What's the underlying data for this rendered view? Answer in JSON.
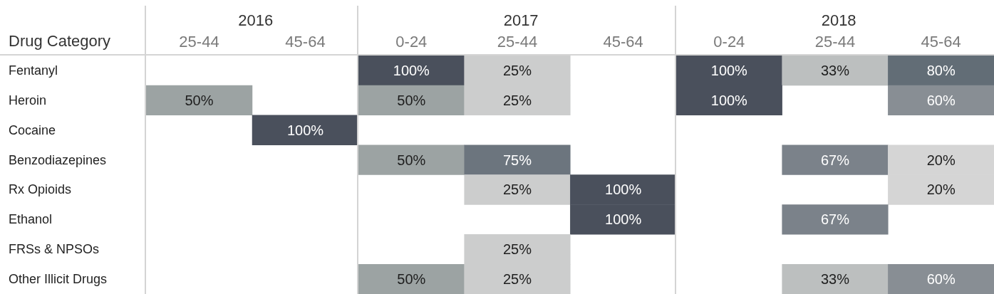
{
  "chart_data": [
    {
      "type": "heatmap",
      "title": "2016",
      "ylabel": "Drug Category",
      "categories": [
        "25-44",
        "45-64"
      ],
      "y_categories": [
        "Fentanyl",
        "Heroin",
        "Cocaine",
        "Benzodiazepines",
        "Rx Opioids",
        "Ethanol",
        "FRSs & NPSOs",
        "Other Illicit Drugs"
      ],
      "cells": [
        [
          null,
          null
        ],
        [
          50,
          null
        ],
        [
          null,
          100
        ],
        [
          null,
          null
        ],
        [
          null,
          null
        ],
        [
          null,
          null
        ],
        [
          null,
          null
        ],
        [
          null,
          null
        ]
      ],
      "cell_labels": [
        [
          null,
          null
        ],
        [
          "50%",
          null
        ],
        [
          null,
          "100%"
        ],
        [
          null,
          null
        ],
        [
          null,
          null
        ],
        [
          null,
          null
        ],
        [
          null,
          null
        ],
        [
          null,
          null
        ]
      ]
    },
    {
      "type": "heatmap",
      "title": "2017",
      "categories": [
        "0-24",
        "25-44",
        "45-64"
      ],
      "y_categories": [
        "Fentanyl",
        "Heroin",
        "Cocaine",
        "Benzodiazepines",
        "Rx Opioids",
        "Ethanol",
        "FRSs & NPSOs",
        "Other Illicit Drugs"
      ],
      "tick_labels": "x",
      "cells": [
        [
          100,
          25,
          null
        ],
        [
          50,
          25,
          null
        ],
        [
          null,
          null,
          null
        ],
        [
          50,
          75,
          null
        ],
        [
          null,
          25,
          100
        ],
        [
          null,
          null,
          100
        ],
        [
          null,
          25,
          null
        ],
        [
          50,
          25,
          null
        ]
      ],
      "cell_labels": [
        [
          "100%",
          "25%",
          null
        ],
        [
          "50%",
          "25%",
          null
        ],
        [
          null,
          null,
          null
        ],
        [
          "50%",
          "75%",
          null
        ],
        [
          null,
          "25%",
          "100%"
        ],
        [
          null,
          null,
          "100%"
        ],
        [
          null,
          "25%",
          null
        ],
        [
          "50%",
          "25%",
          null
        ]
      ]
    },
    {
      "type": "heatmap",
      "title": "2018",
      "categories": [
        "0-24",
        "25-44",
        "45-64"
      ],
      "y_categories": [
        "Fentanyl",
        "Heroin",
        "Cocaine",
        "Benzodiazepines",
        "Rx Opioids",
        "Ethanol",
        "FRSs & NPSOs",
        "Other Illicit Drugs"
      ],
      "tick_labels": "x",
      "cells": [
        [
          100,
          33,
          80
        ],
        [
          100,
          null,
          60
        ],
        [
          null,
          null,
          null
        ],
        [
          null,
          67,
          20
        ],
        [
          null,
          null,
          20
        ],
        [
          null,
          67,
          null
        ],
        [
          null,
          null,
          null
        ],
        [
          null,
          33,
          60
        ]
      ],
      "cell_labels": [
        [
          "100%",
          "33%",
          "80%"
        ],
        [
          "100%",
          null,
          "60%"
        ],
        [
          null,
          null,
          null
        ],
        [
          null,
          "67%",
          "20%"
        ],
        [
          null,
          null,
          "20%"
        ],
        [
          null,
          "67%",
          null
        ],
        [
          null,
          null,
          null
        ],
        [
          null,
          "33%",
          "60%"
        ]
      ]
    }
  ]
}
